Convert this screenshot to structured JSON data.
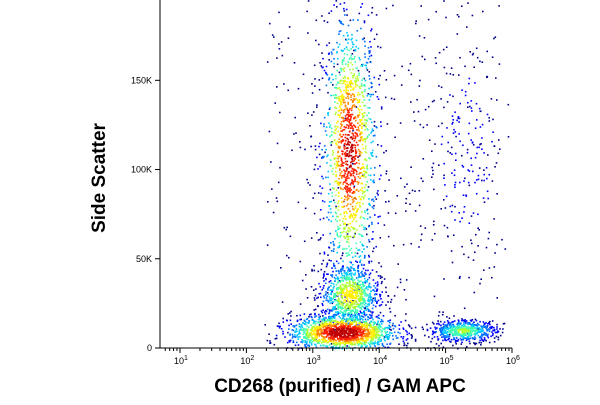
{
  "chart_data": {
    "type": "scatter",
    "subtype": "flow-cytometry-density-dot-plot",
    "xlabel": "CD268 (purified) / GAM APC",
    "ylabel": "Side Scatter",
    "x_scale": "log",
    "xlim": [
      5,
      1000000
    ],
    "ylim": [
      0,
      195000
    ],
    "x_ticks": [
      {
        "value": 10,
        "base": "10",
        "exp": "1"
      },
      {
        "value": 100,
        "base": "10",
        "exp": "2"
      },
      {
        "value": 1000,
        "base": "10",
        "exp": "3"
      },
      {
        "value": 10000,
        "base": "10",
        "exp": "4"
      },
      {
        "value": 100000,
        "base": "10",
        "exp": "5"
      },
      {
        "value": 1000000,
        "base": "10",
        "exp": "6"
      }
    ],
    "y_ticks": [
      {
        "value": 0,
        "label": "0"
      },
      {
        "value": 50000,
        "label": "50K"
      },
      {
        "value": 100000,
        "label": "100K"
      },
      {
        "value": 150000,
        "label": "150K"
      }
    ],
    "grid": false,
    "legend": "none",
    "colormap": [
      "#00008b",
      "#0000ff",
      "#0070ff",
      "#00c8ff",
      "#40ffb0",
      "#b0ff30",
      "#ffee00",
      "#ff8800",
      "#ff2000",
      "#c00000"
    ],
    "populations": [
      {
        "x_center": 3500,
        "y_center": 110000,
        "x_spread_decades": 0.2,
        "y_spread": 38000,
        "relative_density": 0.9
      },
      {
        "x_center": 3500,
        "y_center": 30000,
        "x_spread_decades": 0.22,
        "y_spread": 9000,
        "relative_density": 0.55
      },
      {
        "x_center": 2800,
        "y_center": 9000,
        "x_spread_decades": 0.4,
        "y_spread": 5000,
        "relative_density": 1.0
      },
      {
        "x_center": 180000,
        "y_center": 10000,
        "x_spread_decades": 0.25,
        "y_spread": 3000,
        "relative_density": 0.4
      },
      {
        "x_center": 200000,
        "y_center": 110000,
        "x_spread_decades": 0.3,
        "y_spread": 30000,
        "relative_density": 0.1
      }
    ]
  }
}
